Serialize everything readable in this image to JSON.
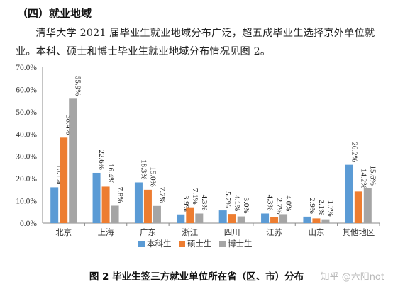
{
  "heading": "（四）就业地域",
  "paragraph": "清华大学 2021 届毕业生就业地域分布广泛，超五成毕业生选择京外单位就业。本科、硕士和博士毕业生就业地域分布情况见图 2。",
  "caption": "图 2 毕业生签三方就业单位所在省（区、市）分布",
  "watermark": "知乎 @六阳not",
  "colors": {
    "本科生": "#5b9bd5",
    "硕士生": "#ed7d31",
    "博士生": "#a5a5a5"
  },
  "chart_data": {
    "type": "bar",
    "categories": [
      "北京",
      "上海",
      "广东",
      "浙江",
      "四川",
      "江苏",
      "山东",
      "其他地区"
    ],
    "series": [
      {
        "name": "本科生",
        "values": [
          16.1,
          22.6,
          18.3,
          3.9,
          5.7,
          4.3,
          2.9,
          26.2
        ],
        "labels": [
          "16.1%",
          "22.6%",
          "18.3%",
          "3.9%",
          "5.7%",
          "4.3%",
          "2.9%",
          "26.2%"
        ]
      },
      {
        "name": "硕士生",
        "values": [
          38.4,
          16.4,
          15.0,
          7.1,
          4.1,
          2.7,
          2.1,
          14.2
        ],
        "labels": [
          "38.4%",
          "16.4%",
          "15.0%",
          "7.1%",
          "4.1%",
          "2.7%",
          "2.1%",
          "14.2%"
        ]
      },
      {
        "name": "博士生",
        "values": [
          55.9,
          7.8,
          7.7,
          4.3,
          3.0,
          4.0,
          1.7,
          15.6
        ],
        "labels": [
          "55.9%",
          "7.8%",
          "7.7%",
          "4.3%",
          "3.0%",
          "4.0%",
          "1.7%",
          "15.6%"
        ]
      }
    ],
    "yticks": [
      "0.0%",
      "10.0%",
      "20.0%",
      "30.0%",
      "40.0%",
      "50.0%",
      "60.0%",
      "70.0%"
    ],
    "ylim": [
      0,
      70
    ],
    "legend_position": "bottom",
    "grid": false
  }
}
